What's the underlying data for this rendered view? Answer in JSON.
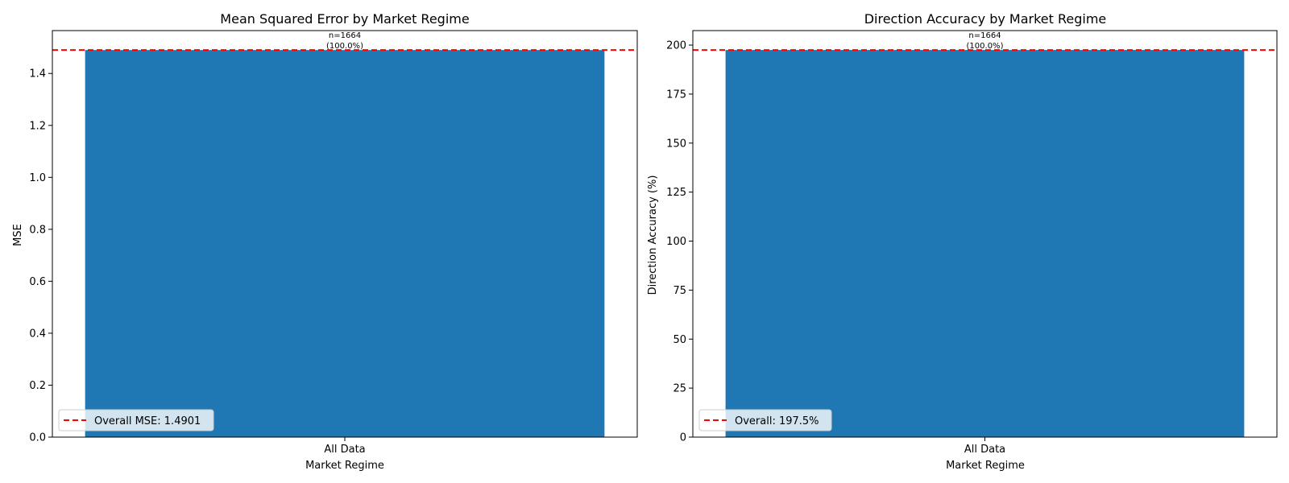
{
  "chart_data": [
    {
      "type": "bar",
      "title": "Mean Squared Error by Market Regime",
      "xlabel": "Market Regime",
      "ylabel": "MSE",
      "categories": [
        "All Data"
      ],
      "values": [
        1.4901
      ],
      "ylim": [
        0,
        1.565
      ],
      "yticks": [
        "0.0",
        "0.2",
        "0.4",
        "0.6",
        "0.8",
        "1.0",
        "1.2",
        "1.4"
      ],
      "ytick_values": [
        0,
        0.2,
        0.4,
        0.6,
        0.8,
        1.0,
        1.2,
        1.4
      ],
      "bar_annotations": [
        {
          "count": "n=1664",
          "percent": "(100.0%)"
        }
      ],
      "reference_line": {
        "value": 1.4901,
        "style": "dashed",
        "color": "#ff0000"
      },
      "legend": {
        "placement": "lower-left",
        "entries": [
          "Overall MSE: 1.4901"
        ]
      },
      "bar_color": "#1f77b4",
      "grid": false
    },
    {
      "type": "bar",
      "title": "Direction Accuracy by Market Regime",
      "xlabel": "Market Regime",
      "ylabel": "Direction Accuracy (%)",
      "categories": [
        "All Data"
      ],
      "values": [
        197.5
      ],
      "ylim": [
        0,
        207.4
      ],
      "yticks": [
        "0",
        "25",
        "50",
        "75",
        "100",
        "125",
        "150",
        "175",
        "200"
      ],
      "ytick_values": [
        0,
        25,
        50,
        75,
        100,
        125,
        150,
        175,
        200
      ],
      "bar_annotations": [
        {
          "count": "n=1664",
          "percent": "(100.0%)"
        }
      ],
      "reference_line": {
        "value": 197.5,
        "style": "dashed",
        "color": "#ff0000"
      },
      "legend": {
        "placement": "lower-left",
        "entries": [
          "Overall: 197.5%"
        ]
      },
      "bar_color": "#1f77b4",
      "grid": false
    }
  ]
}
